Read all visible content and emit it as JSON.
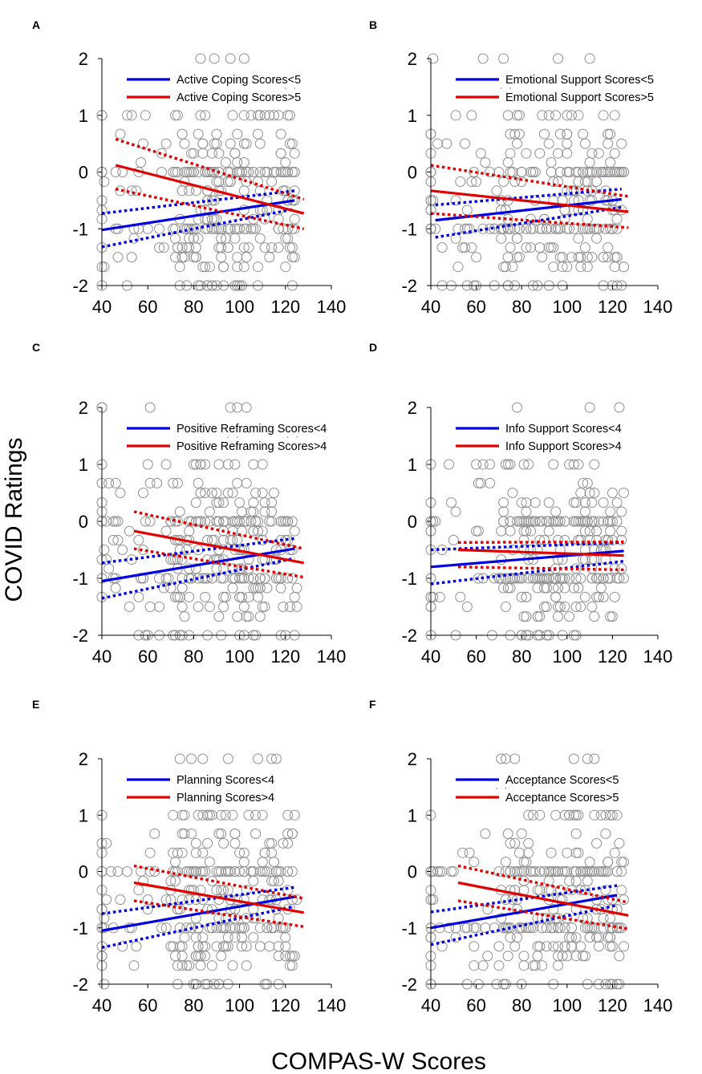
{
  "figure": {
    "ylabel": "COVID Ratings",
    "xlabel": "COMPAS-W Scores"
  },
  "chart_data": [
    {
      "type": "scatter",
      "panel": "A",
      "xlim": [
        40,
        140
      ],
      "ylim": [
        -2,
        2
      ],
      "xticks": [
        "40",
        "60",
        "80",
        "100",
        "120",
        "140"
      ],
      "yticks": [
        "-2",
        "-1",
        "0",
        "1",
        "2"
      ],
      "series": [
        {
          "name": "Active Coping Scores<5",
          "color": "#0000e0",
          "fit": [
            [
              40,
              -1.02
            ],
            [
              124,
              -0.5
            ]
          ],
          "ci_upper": [
            [
              40,
              -0.73
            ],
            [
              124,
              -0.33
            ]
          ],
          "ci_lower": [
            [
              40,
              -1.32
            ],
            [
              124,
              -0.65
            ]
          ]
        },
        {
          "name": "Active Coping Scores>5",
          "color": "#e00000",
          "fit": [
            [
              46,
              0.12
            ],
            [
              128,
              -0.73
            ]
          ],
          "ci_upper": [
            [
              46,
              0.58
            ],
            [
              128,
              -0.48
            ]
          ],
          "ci_lower": [
            [
              46,
              -0.3
            ],
            [
              128,
              -1.0
            ]
          ]
        }
      ],
      "scatter_color": "#909090"
    },
    {
      "type": "scatter",
      "panel": "B",
      "xlim": [
        40,
        140
      ],
      "ylim": [
        -2,
        2
      ],
      "xticks": [
        "40",
        "60",
        "80",
        "100",
        "120",
        "140"
      ],
      "yticks": [
        "-2",
        "-1",
        "0",
        "1",
        "2"
      ],
      "series": [
        {
          "name": "Emotional Support Scores<5",
          "color": "#0000e0",
          "fit": [
            [
              42,
              -0.85
            ],
            [
              124,
              -0.48
            ]
          ],
          "ci_upper": [
            [
              42,
              -0.58
            ],
            [
              124,
              -0.3
            ]
          ],
          "ci_lower": [
            [
              42,
              -1.15
            ],
            [
              124,
              -0.62
            ]
          ]
        },
        {
          "name": "Emotional Support Scores>5",
          "color": "#e00000",
          "fit": [
            [
              40,
              -0.33
            ],
            [
              127,
              -0.7
            ]
          ],
          "ci_upper": [
            [
              40,
              0.12
            ],
            [
              127,
              -0.43
            ]
          ],
          "ci_lower": [
            [
              40,
              -0.73
            ],
            [
              127,
              -0.98
            ]
          ]
        }
      ],
      "scatter_color": "#909090"
    },
    {
      "type": "scatter",
      "panel": "C",
      "xlim": [
        40,
        140
      ],
      "ylim": [
        -2,
        2
      ],
      "xticks": [
        "40",
        "60",
        "80",
        "100",
        "120",
        "140"
      ],
      "yticks": [
        "-2",
        "-1",
        "0",
        "1",
        "2"
      ],
      "series": [
        {
          "name": "Positive Reframing Scores<4",
          "color": "#0000e0",
          "fit": [
            [
              40,
              -1.05
            ],
            [
              124,
              -0.48
            ]
          ],
          "ci_upper": [
            [
              40,
              -0.73
            ],
            [
              124,
              -0.3
            ]
          ],
          "ci_lower": [
            [
              40,
              -1.35
            ],
            [
              124,
              -0.65
            ]
          ]
        },
        {
          "name": "Positive Reframing Scores>4",
          "color": "#e00000",
          "fit": [
            [
              54,
              -0.17
            ],
            [
              128,
              -0.73
            ]
          ],
          "ci_upper": [
            [
              54,
              0.17
            ],
            [
              128,
              -0.48
            ]
          ],
          "ci_lower": [
            [
              54,
              -0.48
            ],
            [
              128,
              -0.98
            ]
          ]
        }
      ],
      "scatter_color": "#909090"
    },
    {
      "type": "scatter",
      "panel": "D",
      "xlim": [
        40,
        140
      ],
      "ylim": [
        -2,
        2
      ],
      "xticks": [
        "40",
        "60",
        "80",
        "100",
        "120",
        "140"
      ],
      "yticks": [
        "-2",
        "-1",
        "0",
        "1",
        "2"
      ],
      "series": [
        {
          "name": "Info Support Scores<4",
          "color": "#0000e0",
          "fit": [
            [
              40,
              -0.8
            ],
            [
              125,
              -0.52
            ]
          ],
          "ci_upper": [
            [
              40,
              -0.5
            ],
            [
              125,
              -0.37
            ]
          ],
          "ci_lower": [
            [
              40,
              -1.1
            ],
            [
              125,
              -0.7
            ]
          ]
        },
        {
          "name": "Info Support Scores>4",
          "color": "#e00000",
          "fit": [
            [
              52,
              -0.5
            ],
            [
              125,
              -0.6
            ]
          ],
          "ci_upper": [
            [
              52,
              -0.37
            ],
            [
              125,
              -0.36
            ]
          ],
          "ci_lower": [
            [
              52,
              -0.8
            ],
            [
              125,
              -0.85
            ]
          ]
        }
      ],
      "scatter_color": "#909090"
    },
    {
      "type": "scatter",
      "panel": "E",
      "xlim": [
        40,
        140
      ],
      "ylim": [
        -2,
        2
      ],
      "xticks": [
        "40",
        "60",
        "80",
        "100",
        "120",
        "140"
      ],
      "yticks": [
        "-2",
        "-1",
        "0",
        "1",
        "2"
      ],
      "series": [
        {
          "name": "Planning Scores<4",
          "color": "#0000e0",
          "fit": [
            [
              40,
              -1.05
            ],
            [
              124,
              -0.45
            ]
          ],
          "ci_upper": [
            [
              40,
              -0.75
            ],
            [
              124,
              -0.28
            ]
          ],
          "ci_lower": [
            [
              40,
              -1.35
            ],
            [
              124,
              -0.62
            ]
          ]
        },
        {
          "name": "Planning Scores>4",
          "color": "#e00000",
          "fit": [
            [
              54,
              -0.2
            ],
            [
              128,
              -0.73
            ]
          ],
          "ci_upper": [
            [
              54,
              0.1
            ],
            [
              128,
              -0.48
            ]
          ],
          "ci_lower": [
            [
              54,
              -0.52
            ],
            [
              128,
              -0.98
            ]
          ]
        }
      ],
      "scatter_color": "#909090"
    },
    {
      "type": "scatter",
      "panel": "F",
      "xlim": [
        40,
        140
      ],
      "ylim": [
        -2,
        2
      ],
      "xticks": [
        "40",
        "60",
        "80",
        "100",
        "120",
        "140"
      ],
      "yticks": [
        "-2",
        "-1",
        "0",
        "1",
        "2"
      ],
      "series": [
        {
          "name": "Acceptance Scores<5",
          "color": "#0000e0",
          "fit": [
            [
              40,
              -1.0
            ],
            [
              122,
              -0.42
            ]
          ],
          "ci_upper": [
            [
              40,
              -0.72
            ],
            [
              122,
              -0.25
            ]
          ],
          "ci_lower": [
            [
              40,
              -1.3
            ],
            [
              122,
              -0.6
            ]
          ]
        },
        {
          "name": "Acceptance Scores>5",
          "color": "#e00000",
          "fit": [
            [
              52,
              -0.2
            ],
            [
              127,
              -0.78
            ]
          ],
          "ci_upper": [
            [
              52,
              0.1
            ],
            [
              127,
              -0.55
            ]
          ],
          "ci_lower": [
            [
              52,
              -0.52
            ],
            [
              127,
              -1.02
            ]
          ]
        }
      ],
      "scatter_color": "#909090"
    }
  ]
}
